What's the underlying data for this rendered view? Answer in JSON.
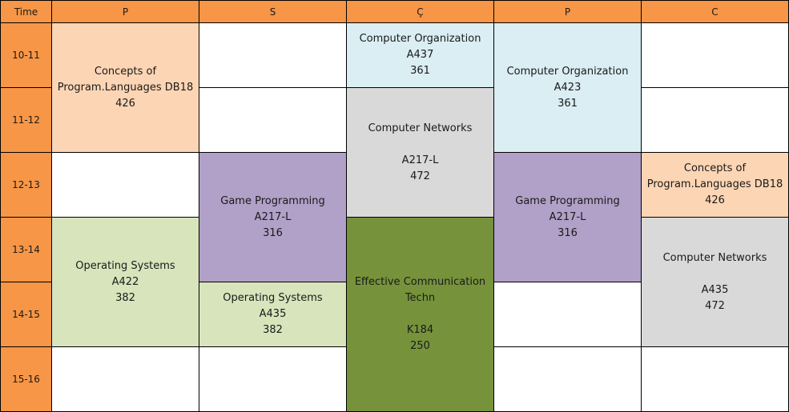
{
  "header": {
    "time_label": "Time",
    "days": [
      "P",
      "S",
      "Ç",
      "P",
      "C"
    ]
  },
  "time_slots": [
    "10-11",
    "11-12",
    "12-13",
    "13-14",
    "14-15",
    "15-16"
  ],
  "colors": {
    "header": "#f79646",
    "peach": "#fcd5b4",
    "light_blue": "#daeef3",
    "gray": "#d9d9d9",
    "purple": "#b1a0c7",
    "light_green": "#d8e4bc",
    "olive": "#76933c"
  },
  "courses": {
    "mon_concepts": {
      "name": "Concepts of Program.Languages DB18",
      "room": "",
      "count": "426"
    },
    "mon_os": {
      "name": "Operating Systems",
      "room": "A422",
      "count": "382"
    },
    "tue_game": {
      "name": "Game Programming",
      "room": "A217-L",
      "count": "316"
    },
    "tue_os": {
      "name": "Operating Systems",
      "room": "A435",
      "count": "382"
    },
    "wed_org": {
      "name": "Computer Organization",
      "room": "A437",
      "count": "361"
    },
    "wed_net": {
      "name": "Computer Networks",
      "room": "A217-L",
      "count": "472"
    },
    "wed_comm": {
      "name": "Effective Communication Techn",
      "room": "K184",
      "count": "250"
    },
    "thu_org": {
      "name": "Computer Organization",
      "room": "A423",
      "count": "361"
    },
    "thu_game": {
      "name": "Game Programming",
      "room": "A217-L",
      "count": "316"
    },
    "fri_concepts": {
      "name": "Concepts of Program.Languages DB18",
      "room": "",
      "count": "426"
    },
    "fri_net": {
      "name": "Computer Networks",
      "room": "A435",
      "count": "472"
    }
  }
}
